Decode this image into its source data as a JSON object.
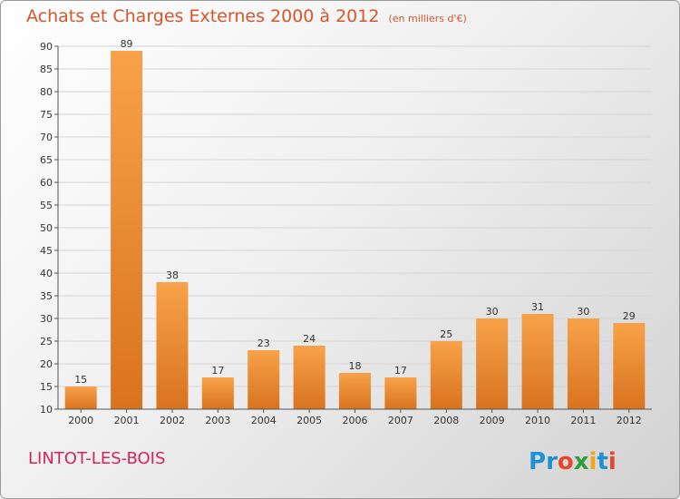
{
  "title": "Achats et Charges Externes 2000 à 2012",
  "unit": "(en milliers d'€)",
  "commune": "LINTOT-LES-BOIS",
  "logo_text": "Proxiti",
  "colors": {
    "title": "#d6552b",
    "commune": "#d4245c",
    "bar_light": "#f7a24a",
    "bar_dark": "#d9731e"
  },
  "chart_data": {
    "type": "bar",
    "title": "Achats et Charges Externes 2000 à 2012",
    "subtitle": "(en milliers d'€)",
    "categories": [
      "2000",
      "2001",
      "2002",
      "2003",
      "2004",
      "2005",
      "2006",
      "2007",
      "2008",
      "2009",
      "2010",
      "2011",
      "2012"
    ],
    "values": [
      15,
      89,
      38,
      17,
      23,
      24,
      18,
      17,
      25,
      30,
      31,
      30,
      29
    ],
    "ylim": [
      10,
      90
    ],
    "yticks": [
      10,
      15,
      20,
      25,
      30,
      35,
      40,
      45,
      50,
      55,
      60,
      65,
      70,
      75,
      80,
      85,
      90
    ],
    "grid": true,
    "legend": "none"
  }
}
